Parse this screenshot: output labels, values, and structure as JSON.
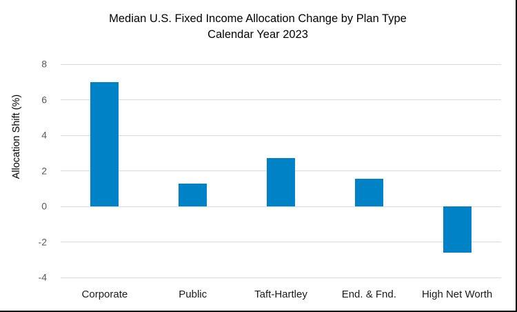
{
  "chart_data": {
    "type": "bar",
    "title": "Median U.S. Fixed Income Allocation Change by Plan Type",
    "subtitle": "Calendar Year 2023",
    "categories": [
      "Corporate",
      "Public",
      "Taft-Hartley",
      "End. & Fnd.",
      "High Net Worth"
    ],
    "values": [
      7.0,
      1.3,
      2.7,
      1.55,
      -2.6
    ],
    "xlabel": "",
    "ylabel": "Allocation Shift (%)",
    "ylim": [
      -4,
      8
    ],
    "yticks": [
      8,
      6,
      4,
      2,
      0,
      -2,
      -4
    ],
    "grid": "horizontal",
    "legend": "none",
    "bar_color": "#0082C6",
    "gridline_color": "#D9D9D9",
    "tick_label_color": "#595959",
    "category_label_color": "#1a1a1a",
    "title_color": "#000000"
  }
}
